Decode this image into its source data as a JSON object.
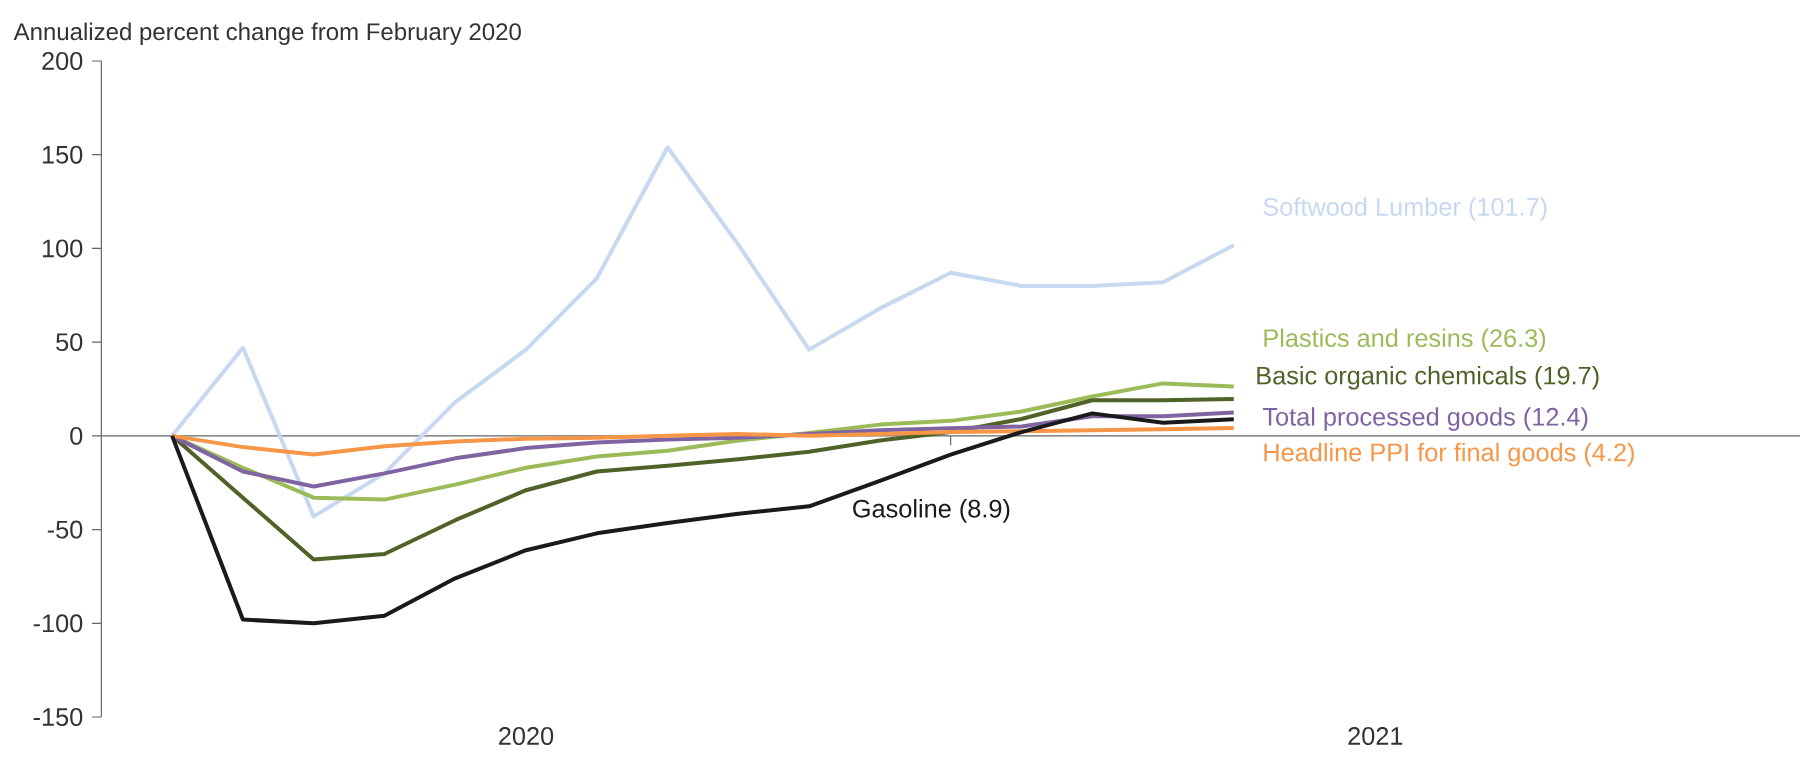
{
  "chart_data": {
    "type": "line",
    "ylabel": "Annualized percent change from February 2020",
    "x": [
      "2020-02",
      "2020-03",
      "2020-04",
      "2020-05",
      "2020-06",
      "2020-07",
      "2020-08",
      "2020-09",
      "2020-10",
      "2020-11",
      "2020-12",
      "2021-01",
      "2021-02",
      "2021-03",
      "2021-04",
      "2021-05"
    ],
    "xlim": [
      "2020-01",
      "2022-01"
    ],
    "xticks": [
      {
        "value": "2020-07",
        "label": "2020"
      },
      {
        "value": "2021-01",
        "label": null
      },
      {
        "value": "2021-07",
        "label": "2021"
      }
    ],
    "ylim": [
      -150,
      200
    ],
    "yticks": [
      -150,
      -100,
      -50,
      0,
      50,
      100,
      150,
      200
    ],
    "series": [
      {
        "name": "Softwood Lumber (101.7)",
        "color": "#c6d9f0",
        "values": [
          0,
          47,
          -43,
          -20,
          18,
          46,
          84,
          154,
          102,
          46,
          68,
          87,
          80,
          80,
          82,
          101.7
        ]
      },
      {
        "name": "Plastics and resins (26.3)",
        "color": "#9bbb59",
        "values": [
          0,
          -17,
          -33,
          -34,
          -26,
          -17,
          -11,
          -8,
          -2.5,
          1.5,
          6,
          8,
          13,
          21,
          28,
          26.3
        ]
      },
      {
        "name": "Basic organic chemicals (19.7)",
        "color": "#4f6228",
        "values": [
          0,
          -33,
          -66,
          -63,
          -45,
          -29,
          -19,
          -16,
          -12.5,
          -8.5,
          -2.5,
          2,
          9,
          19,
          19,
          19.7
        ]
      },
      {
        "name": "Total processed goods (12.4)",
        "color": "#8064a2",
        "values": [
          0,
          -19,
          -27,
          -20,
          -12,
          -6.5,
          -3.5,
          -2,
          -1,
          1,
          3,
          4,
          5,
          10.5,
          10.5,
          12.4
        ]
      },
      {
        "name": "Headline PPI for final goods (4.2)",
        "color": "#f79646",
        "values": [
          0,
          -6,
          -10,
          -5.5,
          -3,
          -1.5,
          -1,
          0,
          1,
          0,
          1,
          2,
          2.5,
          3,
          3.5,
          4.2
        ]
      },
      {
        "name": "Gasoline (8.9)",
        "color": "#1a1a1a",
        "values": [
          0,
          -98,
          -100,
          -96,
          -76,
          -61,
          -52,
          -46.5,
          -41.6,
          -37.6,
          -24,
          -10,
          2,
          12,
          7,
          8.9
        ]
      }
    ]
  }
}
